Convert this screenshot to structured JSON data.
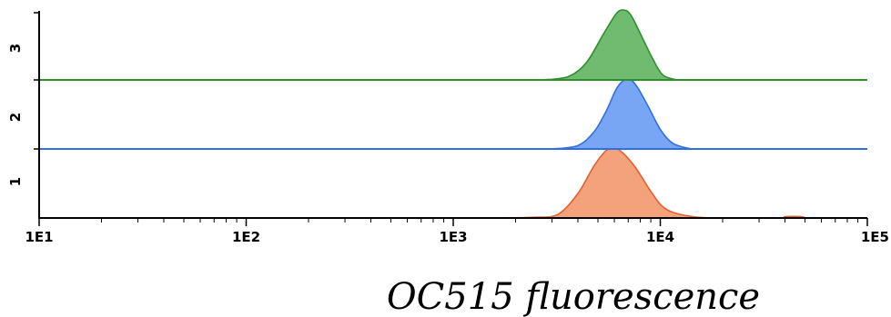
{
  "chart_data": {
    "type": "area",
    "x_scale": "log",
    "xlim": [
      10,
      100000
    ],
    "x_ticks": [
      "1E1",
      "1E2",
      "1E3",
      "1E4",
      "1E5"
    ],
    "y_ticks": [
      "1",
      "2",
      "3"
    ],
    "xlabel": "OC515 fluorescence",
    "ylabel": "",
    "title": "",
    "grid": false,
    "series": [
      {
        "tick": "1",
        "color": "#f4a27c",
        "stroke": "#e3602b",
        "points": [
          [
            1500,
            0
          ],
          [
            2500,
            0.01
          ],
          [
            3200,
            0.05
          ],
          [
            4000,
            0.35
          ],
          [
            4800,
            0.75
          ],
          [
            5500,
            0.97
          ],
          [
            6000,
            1.0
          ],
          [
            6600,
            0.93
          ],
          [
            7600,
            0.72
          ],
          [
            9000,
            0.38
          ],
          [
            10500,
            0.14
          ],
          [
            13000,
            0.04
          ],
          [
            18000,
            0.0
          ],
          [
            38000,
            0.0
          ],
          [
            40000,
            0.02
          ],
          [
            48000,
            0.02
          ],
          [
            50000,
            0.0
          ]
        ]
      },
      {
        "tick": "2",
        "color": "#78a6f5",
        "stroke": "#2f6fe0",
        "points": [
          [
            3000,
            0
          ],
          [
            4000,
            0.05
          ],
          [
            4800,
            0.25
          ],
          [
            5500,
            0.55
          ],
          [
            6200,
            0.88
          ],
          [
            6900,
            1.0
          ],
          [
            7600,
            0.92
          ],
          [
            8700,
            0.62
          ],
          [
            10000,
            0.28
          ],
          [
            11500,
            0.08
          ],
          [
            14000,
            0
          ]
        ]
      },
      {
        "tick": "3",
        "color": "#6fbb6f",
        "stroke": "#2e8f2e",
        "points": [
          [
            2700,
            0
          ],
          [
            3600,
            0.05
          ],
          [
            4400,
            0.25
          ],
          [
            5300,
            0.65
          ],
          [
            6100,
            0.94
          ],
          [
            6600,
            1.0
          ],
          [
            7200,
            0.93
          ],
          [
            8200,
            0.6
          ],
          [
            9200,
            0.3
          ],
          [
            10300,
            0.07
          ],
          [
            12000,
            0
          ]
        ]
      }
    ]
  }
}
